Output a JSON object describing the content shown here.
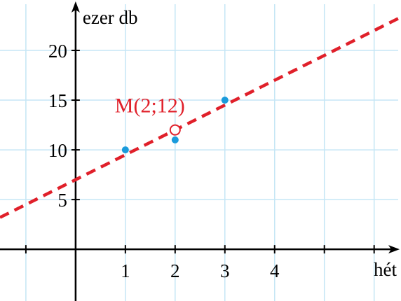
{
  "chart_data": {
    "type": "scatter",
    "x_label": "hét",
    "y_label": "ezer db",
    "series": [
      {
        "color": "#1a9bdc",
        "x": [
          1,
          2,
          3
        ],
        "values": [
          10,
          11,
          15
        ]
      }
    ],
    "fit_line": {
      "color": "#e0202a",
      "x": [
        -1.52,
        6.54
      ],
      "values": [
        3.2,
        23.35
      ]
    },
    "mean_point": {
      "x": 2,
      "y": 12,
      "label": "M(2;12)",
      "color": "#e0202a"
    },
    "xlim": [
      -1.52,
      6.54
    ],
    "ylim": [
      -5.2,
      25.07
    ],
    "xticks": [
      1,
      2,
      3,
      4
    ],
    "x_unlabeled_ticks": [
      -1,
      5,
      6
    ],
    "yticks": [
      5,
      10,
      15,
      20
    ],
    "grid": true,
    "grid_color": "#c5e6f5"
  }
}
